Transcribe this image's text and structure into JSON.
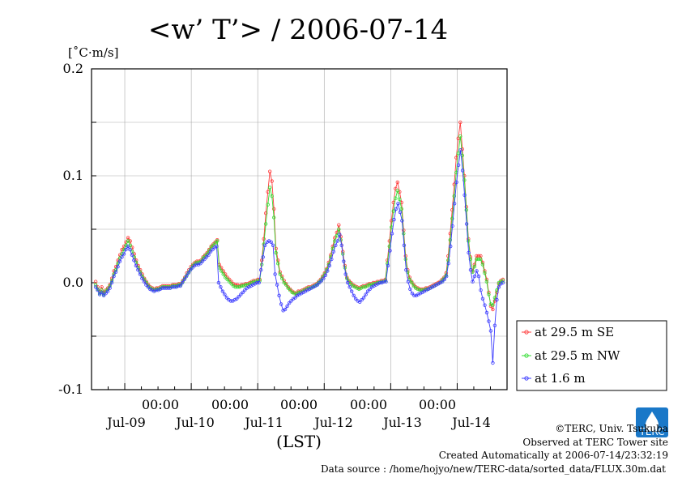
{
  "chart_data": {
    "type": "line",
    "title": "<w’ T’> / 2006-07-14",
    "ylabel": "[˚C·m/s]",
    "xlabel": "(LST)",
    "ylim": [
      -0.1,
      0.2
    ],
    "y_ticks": [
      "0.2",
      "0.1",
      "0.0",
      "-0.1"
    ],
    "x_time_ticks": [
      "00:00",
      "00:00",
      "00:00",
      "00:00",
      "00:00"
    ],
    "x_day_labels": [
      "Jul-09",
      "Jul-10",
      "Jul-11",
      "Jul-12",
      "Jul-13",
      "Jul-14"
    ],
    "x_range_hours": [
      -12,
      138
    ],
    "sample_interval_hours": 0.5,
    "series": [
      {
        "name": "at 29.5 m SE",
        "color": "#ff3b3b",
        "values": [
          0.001,
          -0.004,
          -0.008,
          -0.004,
          -0.009,
          -0.007,
          -0.005,
          -0.002,
          0.004,
          0.011,
          0.015,
          0.021,
          0.026,
          0.031,
          0.034,
          0.038,
          0.042,
          0.039,
          0.033,
          0.027,
          0.021,
          0.016,
          0.012,
          0.008,
          0.004,
          0.001,
          -0.002,
          -0.004,
          -0.005,
          -0.006,
          -0.005,
          -0.005,
          -0.004,
          -0.003,
          -0.003,
          -0.003,
          -0.003,
          -0.003,
          -0.002,
          -0.002,
          -0.002,
          -0.001,
          -0.001,
          0.002,
          0.005,
          0.009,
          0.012,
          0.015,
          0.017,
          0.019,
          0.02,
          0.02,
          0.021,
          0.024,
          0.026,
          0.028,
          0.031,
          0.034,
          0.036,
          0.038,
          0.04,
          0.017,
          0.014,
          0.011,
          0.008,
          0.005,
          0.003,
          0.001,
          -0.001,
          -0.002,
          -0.002,
          -0.003,
          -0.002,
          -0.002,
          -0.001,
          -0.001,
          0.0,
          0.001,
          0.002,
          0.002,
          0.003,
          0.003,
          0.021,
          0.041,
          0.065,
          0.085,
          0.104,
          0.095,
          0.069,
          0.032,
          0.021,
          0.01,
          0.006,
          0.002,
          -0.001,
          -0.004,
          -0.006,
          -0.008,
          -0.009,
          -0.01,
          -0.008,
          -0.008,
          -0.007,
          -0.006,
          -0.005,
          -0.004,
          -0.004,
          -0.003,
          -0.002,
          -0.001,
          0.001,
          0.003,
          0.006,
          0.009,
          0.013,
          0.019,
          0.026,
          0.034,
          0.042,
          0.047,
          0.054,
          0.043,
          0.029,
          0.016,
          0.005,
          0.002,
          0.0,
          -0.002,
          -0.003,
          -0.004,
          -0.005,
          -0.004,
          -0.003,
          -0.003,
          -0.002,
          -0.001,
          -0.001,
          0.0,
          0.0,
          0.001,
          0.001,
          0.002,
          0.002,
          0.003,
          0.021,
          0.039,
          0.058,
          0.075,
          0.088,
          0.094,
          0.085,
          0.075,
          0.049,
          0.025,
          0.012,
          0.005,
          0.001,
          -0.002,
          -0.004,
          -0.005,
          -0.006,
          -0.006,
          -0.006,
          -0.005,
          -0.005,
          -0.004,
          -0.003,
          -0.002,
          -0.001,
          0.0,
          0.001,
          0.003,
          0.005,
          0.009,
          0.025,
          0.046,
          0.068,
          0.092,
          0.117,
          0.135,
          0.15,
          0.125,
          0.1,
          0.071,
          0.041,
          0.024,
          0.011,
          0.017,
          0.025,
          0.025,
          0.025,
          0.019,
          0.011,
          0.003,
          -0.009,
          -0.022,
          -0.025,
          -0.017,
          -0.009,
          -0.001,
          0.002,
          0.003
        ]
      },
      {
        "name": "at 29.5 m NW",
        "color": "#33dd33",
        "values": [
          -0.002,
          -0.006,
          -0.01,
          -0.007,
          -0.011,
          -0.008,
          -0.006,
          -0.003,
          0.002,
          0.008,
          0.012,
          0.018,
          0.023,
          0.027,
          0.031,
          0.035,
          0.039,
          0.035,
          0.029,
          0.024,
          0.019,
          0.014,
          0.01,
          0.006,
          0.003,
          0.0,
          -0.003,
          -0.005,
          -0.006,
          -0.007,
          -0.006,
          -0.006,
          -0.005,
          -0.004,
          -0.004,
          -0.004,
          -0.004,
          -0.004,
          -0.003,
          -0.003,
          -0.003,
          -0.002,
          -0.002,
          0.001,
          0.004,
          0.007,
          0.01,
          0.013,
          0.016,
          0.018,
          0.019,
          0.019,
          0.02,
          0.023,
          0.025,
          0.027,
          0.03,
          0.033,
          0.035,
          0.037,
          0.039,
          0.014,
          0.011,
          0.008,
          0.005,
          0.003,
          0.001,
          -0.001,
          -0.003,
          -0.004,
          -0.004,
          -0.004,
          -0.003,
          -0.003,
          -0.002,
          -0.002,
          -0.001,
          0.0,
          0.001,
          0.001,
          0.002,
          0.002,
          0.017,
          0.036,
          0.055,
          0.073,
          0.089,
          0.081,
          0.061,
          0.028,
          0.018,
          0.008,
          0.004,
          0.0,
          -0.002,
          -0.005,
          -0.007,
          -0.009,
          -0.01,
          -0.011,
          -0.009,
          -0.009,
          -0.008,
          -0.007,
          -0.006,
          -0.005,
          -0.005,
          -0.004,
          -0.003,
          -0.002,
          0.0,
          0.002,
          0.005,
          0.008,
          0.012,
          0.017,
          0.024,
          0.032,
          0.039,
          0.044,
          0.05,
          0.04,
          0.027,
          0.014,
          0.004,
          0.001,
          -0.001,
          -0.003,
          -0.004,
          -0.005,
          -0.006,
          -0.005,
          -0.004,
          -0.004,
          -0.003,
          -0.002,
          -0.002,
          -0.001,
          -0.001,
          0.0,
          0.0,
          0.001,
          0.001,
          0.002,
          0.018,
          0.034,
          0.052,
          0.067,
          0.079,
          0.086,
          0.078,
          0.069,
          0.046,
          0.022,
          0.01,
          0.003,
          0.0,
          -0.003,
          -0.005,
          -0.006,
          -0.007,
          -0.007,
          -0.007,
          -0.006,
          -0.006,
          -0.005,
          -0.004,
          -0.003,
          -0.002,
          -0.001,
          0.0,
          0.002,
          0.004,
          0.007,
          0.021,
          0.04,
          0.06,
          0.081,
          0.103,
          0.121,
          0.137,
          0.119,
          0.096,
          0.068,
          0.039,
          0.022,
          0.01,
          0.015,
          0.022,
          0.022,
          0.022,
          0.017,
          0.009,
          0.001,
          -0.011,
          -0.02,
          -0.021,
          -0.014,
          -0.007,
          0.0,
          0.001,
          0.002
        ]
      },
      {
        "name": "at 1.6 m",
        "color": "#3b3bff",
        "values": [
          -0.004,
          -0.007,
          -0.011,
          -0.009,
          -0.012,
          -0.01,
          -0.008,
          -0.005,
          0.0,
          0.006,
          0.01,
          0.015,
          0.02,
          0.024,
          0.027,
          0.031,
          0.034,
          0.031,
          0.026,
          0.021,
          0.016,
          0.012,
          0.008,
          0.004,
          0.001,
          -0.002,
          -0.004,
          -0.006,
          -0.007,
          -0.008,
          -0.007,
          -0.007,
          -0.006,
          -0.005,
          -0.005,
          -0.005,
          -0.005,
          -0.005,
          -0.004,
          -0.004,
          -0.004,
          -0.003,
          -0.003,
          0.0,
          0.003,
          0.006,
          0.009,
          0.012,
          0.014,
          0.016,
          0.017,
          0.017,
          0.018,
          0.02,
          0.022,
          0.024,
          0.026,
          0.029,
          0.031,
          0.033,
          0.034,
          0.0,
          -0.004,
          -0.008,
          -0.011,
          -0.014,
          -0.016,
          -0.017,
          -0.017,
          -0.016,
          -0.015,
          -0.013,
          -0.011,
          -0.009,
          -0.007,
          -0.005,
          -0.004,
          -0.003,
          -0.002,
          -0.001,
          0.0,
          0.0,
          0.012,
          0.024,
          0.035,
          0.038,
          0.039,
          0.038,
          0.035,
          0.008,
          -0.002,
          -0.012,
          -0.02,
          -0.026,
          -0.025,
          -0.022,
          -0.019,
          -0.017,
          -0.015,
          -0.014,
          -0.012,
          -0.011,
          -0.01,
          -0.009,
          -0.008,
          -0.007,
          -0.006,
          -0.005,
          -0.004,
          -0.003,
          -0.002,
          0.0,
          0.002,
          0.004,
          0.007,
          0.011,
          0.016,
          0.022,
          0.029,
          0.035,
          0.039,
          0.045,
          0.035,
          0.02,
          0.008,
          0.0,
          -0.004,
          -0.008,
          -0.012,
          -0.015,
          -0.017,
          -0.018,
          -0.016,
          -0.014,
          -0.011,
          -0.008,
          -0.006,
          -0.004,
          -0.003,
          -0.002,
          -0.001,
          0.0,
          0.0,
          0.001,
          0.001,
          0.016,
          0.03,
          0.046,
          0.059,
          0.069,
          0.074,
          0.066,
          0.058,
          0.035,
          0.012,
          0.001,
          -0.006,
          -0.01,
          -0.012,
          -0.012,
          -0.011,
          -0.01,
          -0.009,
          -0.008,
          -0.007,
          -0.006,
          -0.005,
          -0.004,
          -0.003,
          -0.002,
          -0.001,
          0.0,
          0.001,
          0.003,
          0.006,
          0.018,
          0.034,
          0.053,
          0.074,
          0.094,
          0.11,
          0.124,
          0.105,
          0.082,
          0.055,
          0.028,
          0.012,
          0.001,
          0.006,
          0.011,
          0.006,
          -0.007,
          -0.015,
          -0.021,
          -0.028,
          -0.036,
          -0.045,
          -0.075,
          -0.04,
          -0.016,
          -0.004,
          -0.001,
          0.0
        ]
      }
    ]
  },
  "footer": {
    "copyright": "©TERC, Univ. Tsukuba",
    "site": "Observed at TERC Tower site",
    "created": "Created Automatically at 2006-07-14/23:32:19",
    "source": "Data source : /home/hojyo/new/TERC-data/sorted_data/FLUX.30m.dat",
    "logo_text": "TERC"
  }
}
